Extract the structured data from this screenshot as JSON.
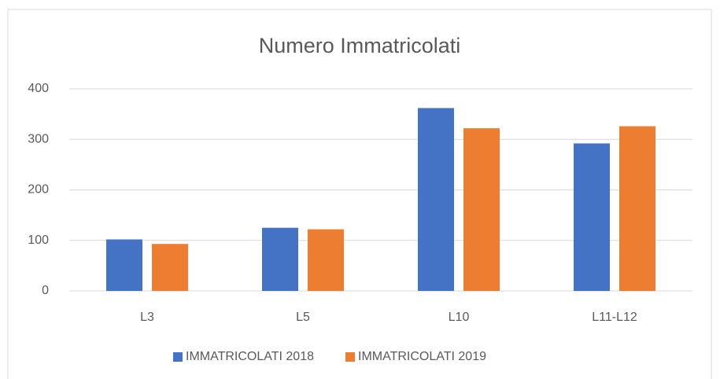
{
  "chart_data": {
    "type": "bar",
    "title": "Numero Immatricolati",
    "categories": [
      "L3",
      "L5",
      "L10",
      "L11-L12"
    ],
    "series": [
      {
        "name": "IMMATRICOLATI 2018",
        "color": "#4472c4",
        "values": [
          102,
          125,
          362,
          292
        ]
      },
      {
        "name": "IMMATRICOLATI 2019",
        "color": "#ed7d31",
        "values": [
          93,
          122,
          322,
          326
        ]
      }
    ],
    "ylim": [
      0,
      400
    ],
    "yticks": [
      0,
      100,
      200,
      300,
      400
    ],
    "grid": true,
    "legend": "bottom"
  }
}
